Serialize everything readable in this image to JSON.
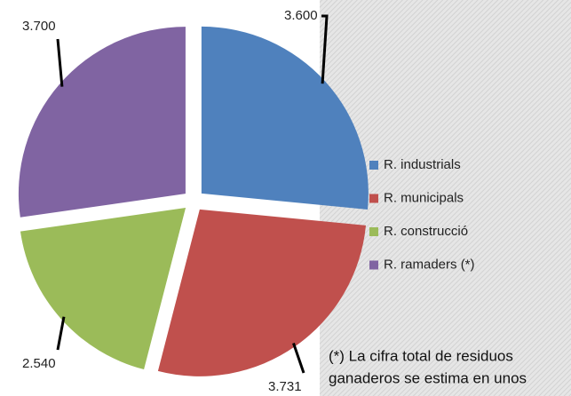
{
  "chart_data": {
    "type": "pie",
    "categories": [
      "R. industrials",
      "R. municipals",
      "R. construcció",
      "R. ramaders (*)"
    ],
    "values": [
      3600,
      3731,
      2540,
      3700
    ],
    "value_labels": [
      "3.600",
      "3.731",
      "2.540",
      "3.700"
    ],
    "colors": [
      "#4f81bd",
      "#c0504d",
      "#9bbb59",
      "#8064a2"
    ],
    "legend": "right",
    "note": [
      "(*) La cifra total de residuos",
      "ganaderos se estima en unos"
    ]
  }
}
